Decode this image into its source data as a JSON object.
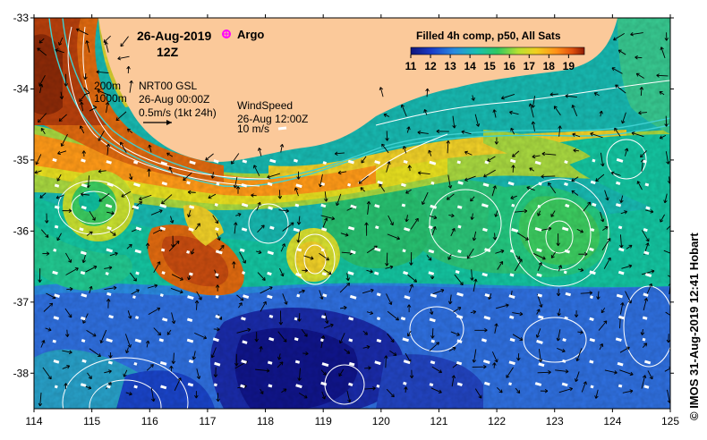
{
  "map": {
    "date": "26-Aug-2019",
    "time": "12Z",
    "argo_label": "Argo",
    "product_title": "Filled 4h comp, p50, All Sats",
    "colorbar_ticks": [
      "11",
      "12",
      "13",
      "14",
      "15",
      "16",
      "17",
      "18",
      "19"
    ],
    "colorbar_range": [
      11,
      19.8
    ],
    "colors": {
      "land": "#fbc99a",
      "argo_marker": "#ff00ff",
      "current_contour": "#ffffff",
      "isobath": "#40d0d0"
    },
    "contour_legend": {
      "depth_200": "200m",
      "depth_1000": "1000m",
      "gsl_title": "NRT00 GSL",
      "gsl_date": "26-Aug 00:00Z",
      "current_scale": "0.5m/s (1kt 24h)"
    },
    "wind_legend": {
      "title": "WindSpeed",
      "date": "26-Aug 12:00Z",
      "scale": "10 m/s"
    },
    "x_ticks": [
      "114",
      "115",
      "116",
      "117",
      "118",
      "119",
      "120",
      "121",
      "122",
      "123",
      "124",
      "125"
    ],
    "y_ticks": [
      "-33",
      "-34",
      "-35",
      "-36",
      "-37",
      "-38"
    ],
    "lon_range": [
      114,
      125
    ],
    "lat_range": [
      -38.5,
      -33
    ],
    "credit": "© IMOS 31-Aug-2019 12:41 Hobart"
  }
}
